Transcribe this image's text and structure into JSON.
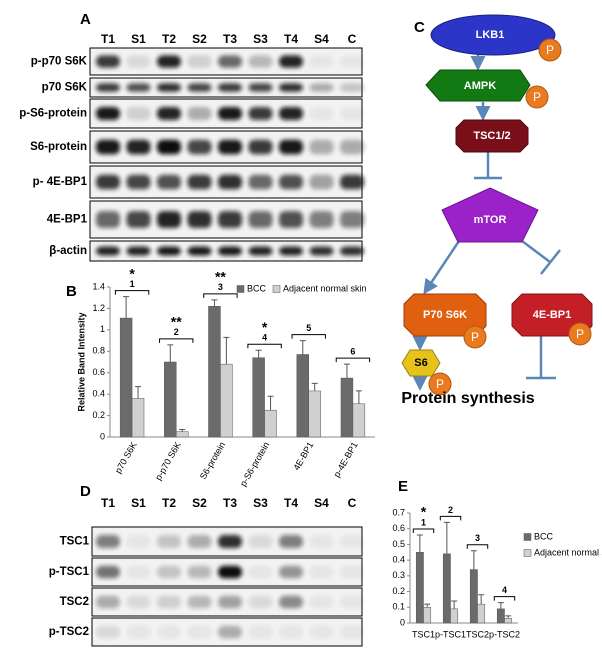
{
  "blots": [
    {
      "label": "A",
      "lanes": [
        "T1",
        "S1",
        "T2",
        "S2",
        "T3",
        "S3",
        "T4",
        "S4",
        "C"
      ],
      "rows": [
        "p-p70 S6K",
        "p70  S6K",
        "p-S6-protein",
        "S6-protein",
        "p- 4E-BP1",
        "4E-BP1",
        "β-actin"
      ]
    },
    {
      "label": "D",
      "lanes": [
        "T1",
        "S1",
        "T2",
        "S2",
        "T3",
        "S3",
        "T4",
        "S4",
        "C"
      ],
      "rows": [
        "TSC1",
        "p-TSC1",
        "TSC2",
        "p-TSC2"
      ]
    }
  ],
  "diagram": {
    "label": "C",
    "phospho": "P",
    "nodes": [
      "LKB1",
      "AMPK",
      "TSC1/2",
      "mTOR",
      "P70 S6K",
      "4E-BP1",
      "S6"
    ],
    "output": "Protein synthesis"
  },
  "chart_data": [
    {
      "type": "bar",
      "label": "B",
      "y_label": "Relative Band Intensity",
      "categories": [
        "p70 S6K",
        "p-p70 S6K",
        "S6-protein",
        "p-S6-protein",
        "4E-BP1",
        "p-4E-BP1"
      ],
      "series": [
        {
          "name": "BCC",
          "color": "#6b6b6b",
          "values": [
            1.11,
            0.7,
            1.22,
            0.74,
            0.77,
            0.55
          ],
          "errors": [
            0.2,
            0.16,
            0.06,
            0.07,
            0.13,
            0.13
          ]
        },
        {
          "name": "Adjacent normal skin",
          "color": "#d0d0d0",
          "values": [
            0.36,
            0.05,
            0.68,
            0.25,
            0.43,
            0.31
          ],
          "errors": [
            0.11,
            0.02,
            0.25,
            0.13,
            0.07,
            0.12
          ]
        }
      ],
      "annotations": [
        {
          "label": "1",
          "note": "*"
        },
        {
          "label": "2",
          "note": "**"
        },
        {
          "label": "3",
          "note": "**"
        },
        {
          "label": "4",
          "note": "*"
        },
        {
          "label": "5"
        },
        {
          "label": "6"
        }
      ],
      "ylim": [
        0,
        1.4
      ],
      "yticks": [
        0,
        0.2,
        0.4,
        0.6,
        0.8,
        1,
        1.2,
        1.4
      ],
      "legend": "top"
    },
    {
      "type": "bar",
      "label": "E",
      "categories": [
        "TSC1",
        "p-TSC1",
        "TSC2",
        "p-TSC2"
      ],
      "series": [
        {
          "name": "BCC",
          "color": "#6b6b6b",
          "values": [
            0.45,
            0.44,
            0.34,
            0.09
          ],
          "errors": [
            0.11,
            0.2,
            0.12,
            0.04
          ]
        },
        {
          "name": "Adjacent normal skin",
          "color": "#d0d0d0",
          "values": [
            0.1,
            0.09,
            0.12,
            0.03
          ],
          "errors": [
            0.02,
            0.05,
            0.06,
            0.015
          ]
        }
      ],
      "annotations": [
        {
          "label": "1",
          "note": "*"
        },
        {
          "label": "2"
        },
        {
          "label": "3"
        },
        {
          "label": "4"
        }
      ],
      "ylim": [
        0,
        0.7
      ],
      "yticks": [
        0,
        0.1,
        0.2,
        0.3,
        0.4,
        0.5,
        0.6,
        0.7
      ],
      "legend": "right"
    }
  ]
}
